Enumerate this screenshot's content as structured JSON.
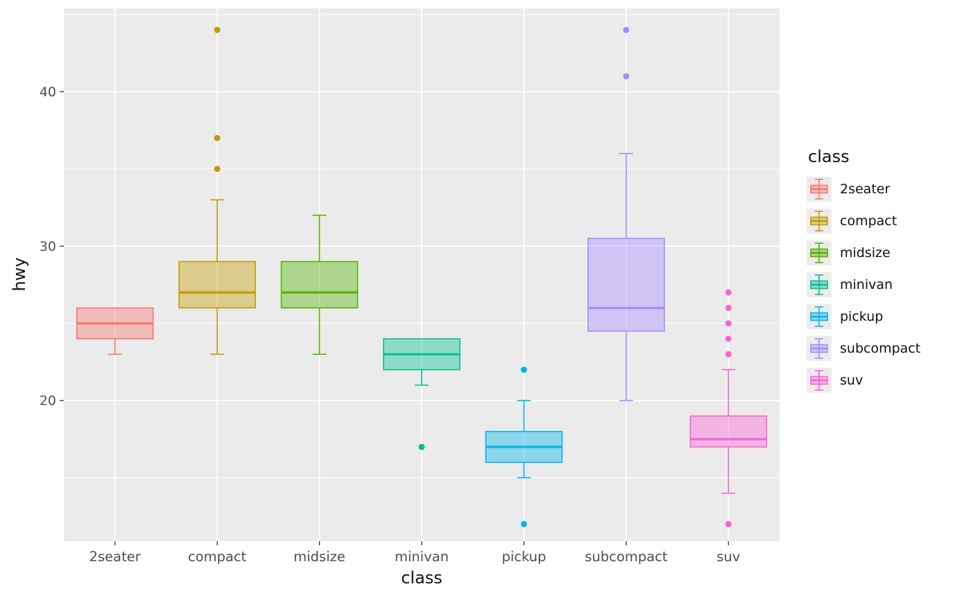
{
  "figure": {
    "background": "#FFFFFF",
    "panel_background": "#EBEBEB",
    "grid_color": "#FFFFFF",
    "axis_text_color": "#4D4D4D",
    "axis_title_color": "#111111",
    "tick_color": "#333333",
    "legend_key_background": "#ECECEC",
    "legend_text_color": "#111111"
  },
  "chart_data": {
    "type": "boxplot",
    "title": "",
    "xlabel": "class",
    "ylabel": "hwy",
    "categories": [
      "2seater",
      "compact",
      "midsize",
      "minivan",
      "pickup",
      "subcompact",
      "suv"
    ],
    "ylim": [
      10.9,
      45.4
    ],
    "y_major_ticks": [
      20,
      30,
      40
    ],
    "y_minor_ticks": [
      15,
      25,
      35,
      45
    ],
    "grid": true,
    "legend": {
      "title": "class",
      "position": "right"
    },
    "series": [
      {
        "name": "2seater",
        "color": "#F8766D",
        "whisker_low": 23,
        "q1": 24,
        "median": 25,
        "q3": 26,
        "whisker_high": 26,
        "outliers": []
      },
      {
        "name": "compact",
        "color": "#C49A00",
        "whisker_low": 23,
        "q1": 26,
        "median": 27,
        "q3": 29,
        "whisker_high": 33,
        "outliers": [
          35,
          37,
          44
        ]
      },
      {
        "name": "midsize",
        "color": "#53B400",
        "whisker_low": 23,
        "q1": 26,
        "median": 27,
        "q3": 29,
        "whisker_high": 32,
        "outliers": []
      },
      {
        "name": "minivan",
        "color": "#00C094",
        "whisker_low": 21,
        "q1": 22,
        "median": 23,
        "q3": 24,
        "whisker_high": 24,
        "outliers": [
          17
        ]
      },
      {
        "name": "pickup",
        "color": "#00B6EB",
        "whisker_low": 15,
        "q1": 16,
        "median": 17,
        "q3": 18,
        "whisker_high": 20,
        "outliers": [
          22,
          12
        ]
      },
      {
        "name": "subcompact",
        "color": "#A58AFF",
        "whisker_low": 20,
        "q1": 24.5,
        "median": 26,
        "q3": 30.5,
        "whisker_high": 36,
        "outliers": [
          41,
          44
        ]
      },
      {
        "name": "suv",
        "color": "#FB61D7",
        "whisker_low": 14,
        "q1": 17,
        "median": 17.5,
        "q3": 19,
        "whisker_high": 22,
        "outliers": [
          27,
          26,
          25,
          24,
          23,
          12
        ]
      }
    ]
  }
}
